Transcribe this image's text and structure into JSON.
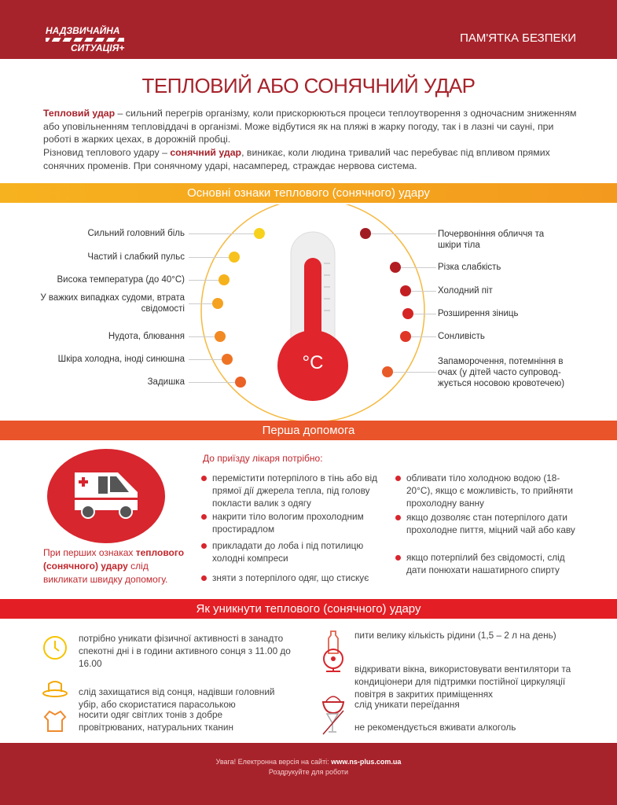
{
  "header": {
    "logo_line1": "НАДЗВИЧАЙНА",
    "logo_line2": "СИТУАЦІЯ+",
    "right_label": "ПАМ'ЯТКА БЕЗПЕКИ"
  },
  "title": "ТЕПЛОВИЙ АБО СОНЯЧНИЙ УДАР",
  "intro": {
    "p1_bold": "Тепловий удар",
    "p1_text": " – сильний перегрів організму, коли прискорюються процеси теплоутворення з одночасним зниженням або уповільненням тепловіддачі в організмі. Може відбутися як на пляжі в жарку погоду, так і в лазні чи сауні, при роботі в жарких цехах, в дорожній пробці.",
    "p2_pre": "Різновид теплового удару – ",
    "p2_bold": "сонячний удар",
    "p2_text": ", виникає, коли людина тривалий час перебуває під впливом прямих сонячних променів. При сонячному ударі, насамперед, страждає нервова система."
  },
  "signs": {
    "heading": "Основні ознаки теплового (сонячного) удару",
    "thermo_label": "°C",
    "left": [
      "Сильний головний біль",
      "Частий і слабкий пульс",
      "Висока температура (до 40°С)",
      "У важких випадках судоми, втрата свідомості",
      "Нудота, блювання",
      "Шкіра холодна, іноді синюшна",
      "Задишка"
    ],
    "right": [
      "Почервоніння обличчя та шкіри тіла",
      "Різка слабкість",
      "Холодний піт",
      "Розширення зіниць",
      "Сонливість",
      "Запаморочення, потемніння в очах (у дітей часто супровод-жується носовою кровотечею)"
    ]
  },
  "first_aid": {
    "heading": "Перша допомога",
    "sub": "До приїзду лікаря потрібно:",
    "call_pre": "При перших ознаках ",
    "call_bold": "теплового (сонячного) удару",
    "call_post": " слід викликати швидку допомогу.",
    "col1": [
      "перемістити потерпілого в тінь або від прямої дії джерела тепла, під голову покласти валик з одягу",
      "накрити тіло вологим прохолодним простирадлом",
      "прикладати до лоба і під потилицю холодні компреси",
      "зняти з потерпілого одяг, що стискує"
    ],
    "col2": [
      "обливати тіло холодною водою (18-20°С), якщо є можливість, то прийняти прохолодну ванну",
      "якщо дозволяє стан потерпілого дати прохолодне пиття, міцний чай або каву",
      "якщо потерпілий без свідомості, слід дати понюхати нашатирного спирту"
    ]
  },
  "prevention": {
    "heading": "Як уникнути теплового (сонячного) удару",
    "left": [
      {
        "icon": "clock-icon",
        "text": "потрібно уникати фізичної активності в занадто спекотні дні і в години активного сонця з 11.00 до 16.00"
      },
      {
        "icon": "hat-icon",
        "text": "слід захищатися від сонця, надівши головний убір, або скористатися парасолькою"
      },
      {
        "icon": "shirt-icon",
        "text": "носити одяг світлих тонів з добре провітрюваних, натуральних тканин"
      }
    ],
    "right": [
      {
        "icon": "bottle-icon",
        "text": "пити велику кількість рідини (1,5 – 2 л на день)"
      },
      {
        "icon": "fan-icon",
        "text": "відкривати вікна, використовувати вентилятори та кондиціонери для підтримки постійної циркуляції повітря в закритих приміщеннях"
      },
      {
        "icon": "food-bowl-icon",
        "text": "слід уникати переїдання"
      },
      {
        "icon": "no-alcohol-icon",
        "text": "не рекомендується вживати алкоголь"
      }
    ]
  },
  "footer": {
    "line1_pre": "Увага! Електронна версія на сайті: ",
    "line1_link": "www.ns-plus.com.ua",
    "line2": "Роздрукуйте для роботи"
  },
  "colors": {
    "brand": "#a7232b",
    "orange": "#f5a623",
    "first_aid_bar": "#e9542a",
    "prevention_bar": "#e31e24"
  }
}
